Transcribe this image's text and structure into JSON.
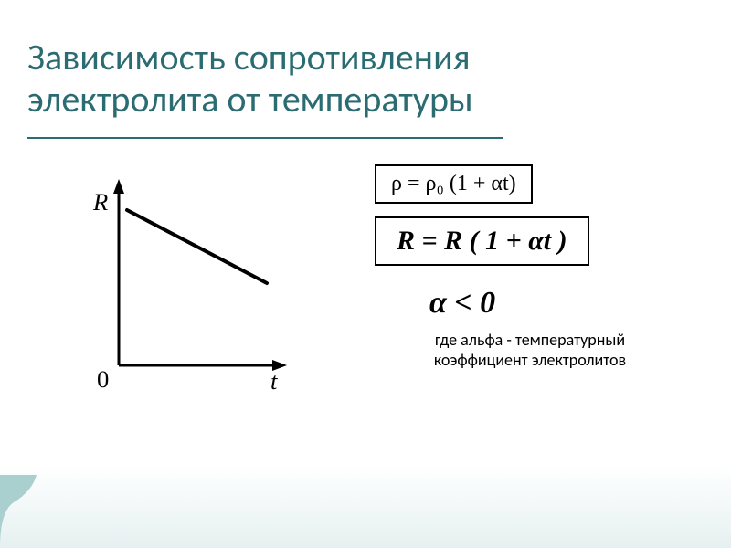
{
  "title": {
    "line1": "Зависимость сопротивления",
    "line2": "электролита от температуры",
    "color": "#2b6b72",
    "fontsize": 40,
    "underline_color": "#2b6b72"
  },
  "chart": {
    "type": "line",
    "y_axis_label": "R",
    "x_axis_label": "t",
    "origin_label": "0",
    "axis_color": "#000000",
    "axis_width": 3,
    "line_color": "#000000",
    "line_width": 4,
    "background": "#ffffff",
    "x_range": [
      0,
      10
    ],
    "y_range": [
      0,
      10
    ],
    "series": {
      "x1": 0.5,
      "y1": 8.5,
      "x2": 9,
      "y2": 4.5
    },
    "label_font": "Times New Roman",
    "label_fontsize_pt": 20,
    "label_style": "italic"
  },
  "formulas": {
    "rho": "ρ = ρ₀ (1 + αt)",
    "R": "R = R ( 1 + αt )",
    "alpha": "α < 0",
    "box_border_color": "#000000",
    "text_color": "#000000"
  },
  "caption": {
    "line1": "где альфа - температурный",
    "line2": "коэффициент электролитов",
    "color": "#000000",
    "fontsize": 18
  },
  "decor": {
    "corner_color": "#a9cfcf",
    "page_bg_gradient_bottom": "#e6f0f0"
  }
}
